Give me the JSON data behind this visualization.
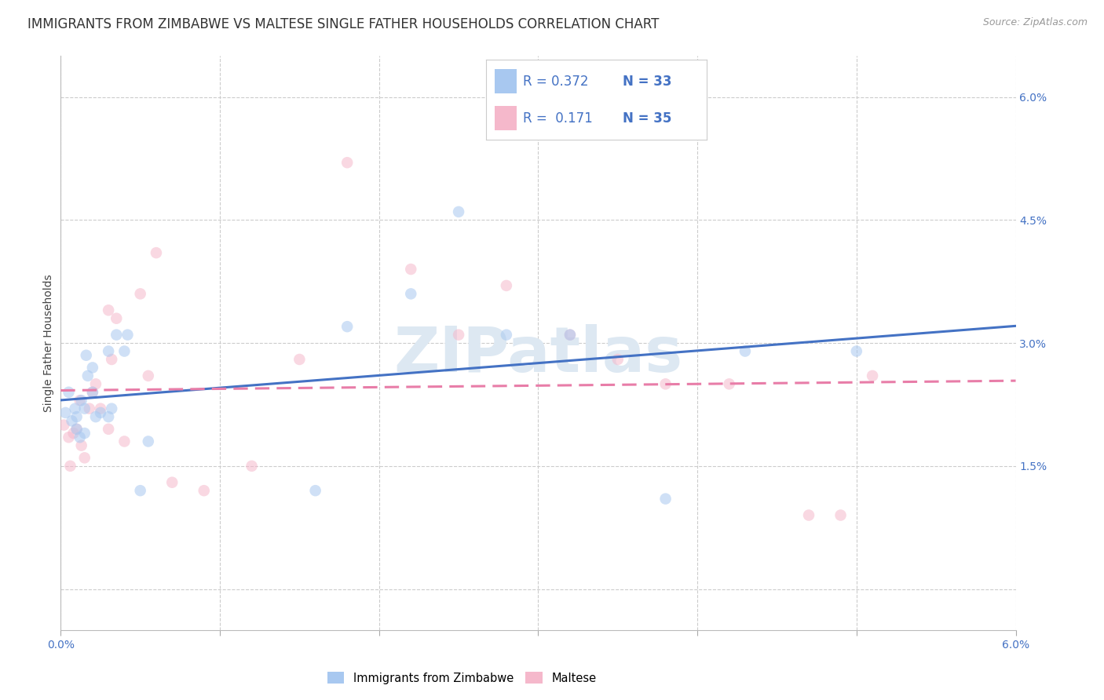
{
  "title": "IMMIGRANTS FROM ZIMBABWE VS MALTESE SINGLE FATHER HOUSEHOLDS CORRELATION CHART",
  "source": "Source: ZipAtlas.com",
  "xlabel_label": "Immigrants from Zimbabwe",
  "ylabel_label": "Single Father Households",
  "xlim": [
    0.0,
    0.06
  ],
  "ylim": [
    -0.005,
    0.065
  ],
  "color_blue": "#A8C8F0",
  "color_pink": "#F5B8CB",
  "color_blue_line": "#4472C4",
  "color_pink_line": "#E87DA8",
  "color_blue_text": "#4472C4",
  "color_pink_text": "#4472C4",
  "background_color": "#FFFFFF",
  "grid_color": "#CCCCCC",
  "watermark_text": "ZIPatlas",
  "watermark_color": "#DDE8F2",
  "title_fontsize": 12,
  "source_fontsize": 9,
  "label_fontsize": 10,
  "tick_fontsize": 10,
  "marker_size": 110,
  "marker_alpha": 0.55,
  "line_width": 2.2,
  "blue_x": [
    0.0003,
    0.0005,
    0.0007,
    0.0009,
    0.001,
    0.001,
    0.0012,
    0.0013,
    0.0015,
    0.0015,
    0.0016,
    0.0017,
    0.002,
    0.002,
    0.0022,
    0.0025,
    0.003,
    0.003,
    0.0032,
    0.0035,
    0.004,
    0.0042,
    0.005,
    0.016,
    0.018,
    0.022,
    0.025,
    0.028,
    0.032,
    0.038,
    0.043,
    0.05,
    0.0055
  ],
  "blue_y": [
    0.0215,
    0.024,
    0.0205,
    0.022,
    0.021,
    0.0195,
    0.0185,
    0.023,
    0.019,
    0.022,
    0.0285,
    0.026,
    0.024,
    0.027,
    0.021,
    0.0215,
    0.029,
    0.021,
    0.022,
    0.031,
    0.029,
    0.031,
    0.012,
    0.012,
    0.032,
    0.036,
    0.046,
    0.031,
    0.031,
    0.011,
    0.029,
    0.029,
    0.018
  ],
  "pink_x": [
    0.0002,
    0.0005,
    0.0006,
    0.0008,
    0.001,
    0.0012,
    0.0013,
    0.0015,
    0.0018,
    0.002,
    0.0022,
    0.0025,
    0.003,
    0.003,
    0.0032,
    0.0035,
    0.004,
    0.005,
    0.006,
    0.007,
    0.009,
    0.012,
    0.015,
    0.018,
    0.022,
    0.025,
    0.028,
    0.032,
    0.035,
    0.038,
    0.042,
    0.047,
    0.049,
    0.051,
    0.0055
  ],
  "pink_y": [
    0.02,
    0.0185,
    0.015,
    0.019,
    0.0195,
    0.023,
    0.0175,
    0.016,
    0.022,
    0.024,
    0.025,
    0.022,
    0.034,
    0.0195,
    0.028,
    0.033,
    0.018,
    0.036,
    0.041,
    0.013,
    0.012,
    0.015,
    0.028,
    0.052,
    0.039,
    0.031,
    0.037,
    0.031,
    0.028,
    0.025,
    0.025,
    0.009,
    0.009,
    0.026,
    0.026
  ]
}
